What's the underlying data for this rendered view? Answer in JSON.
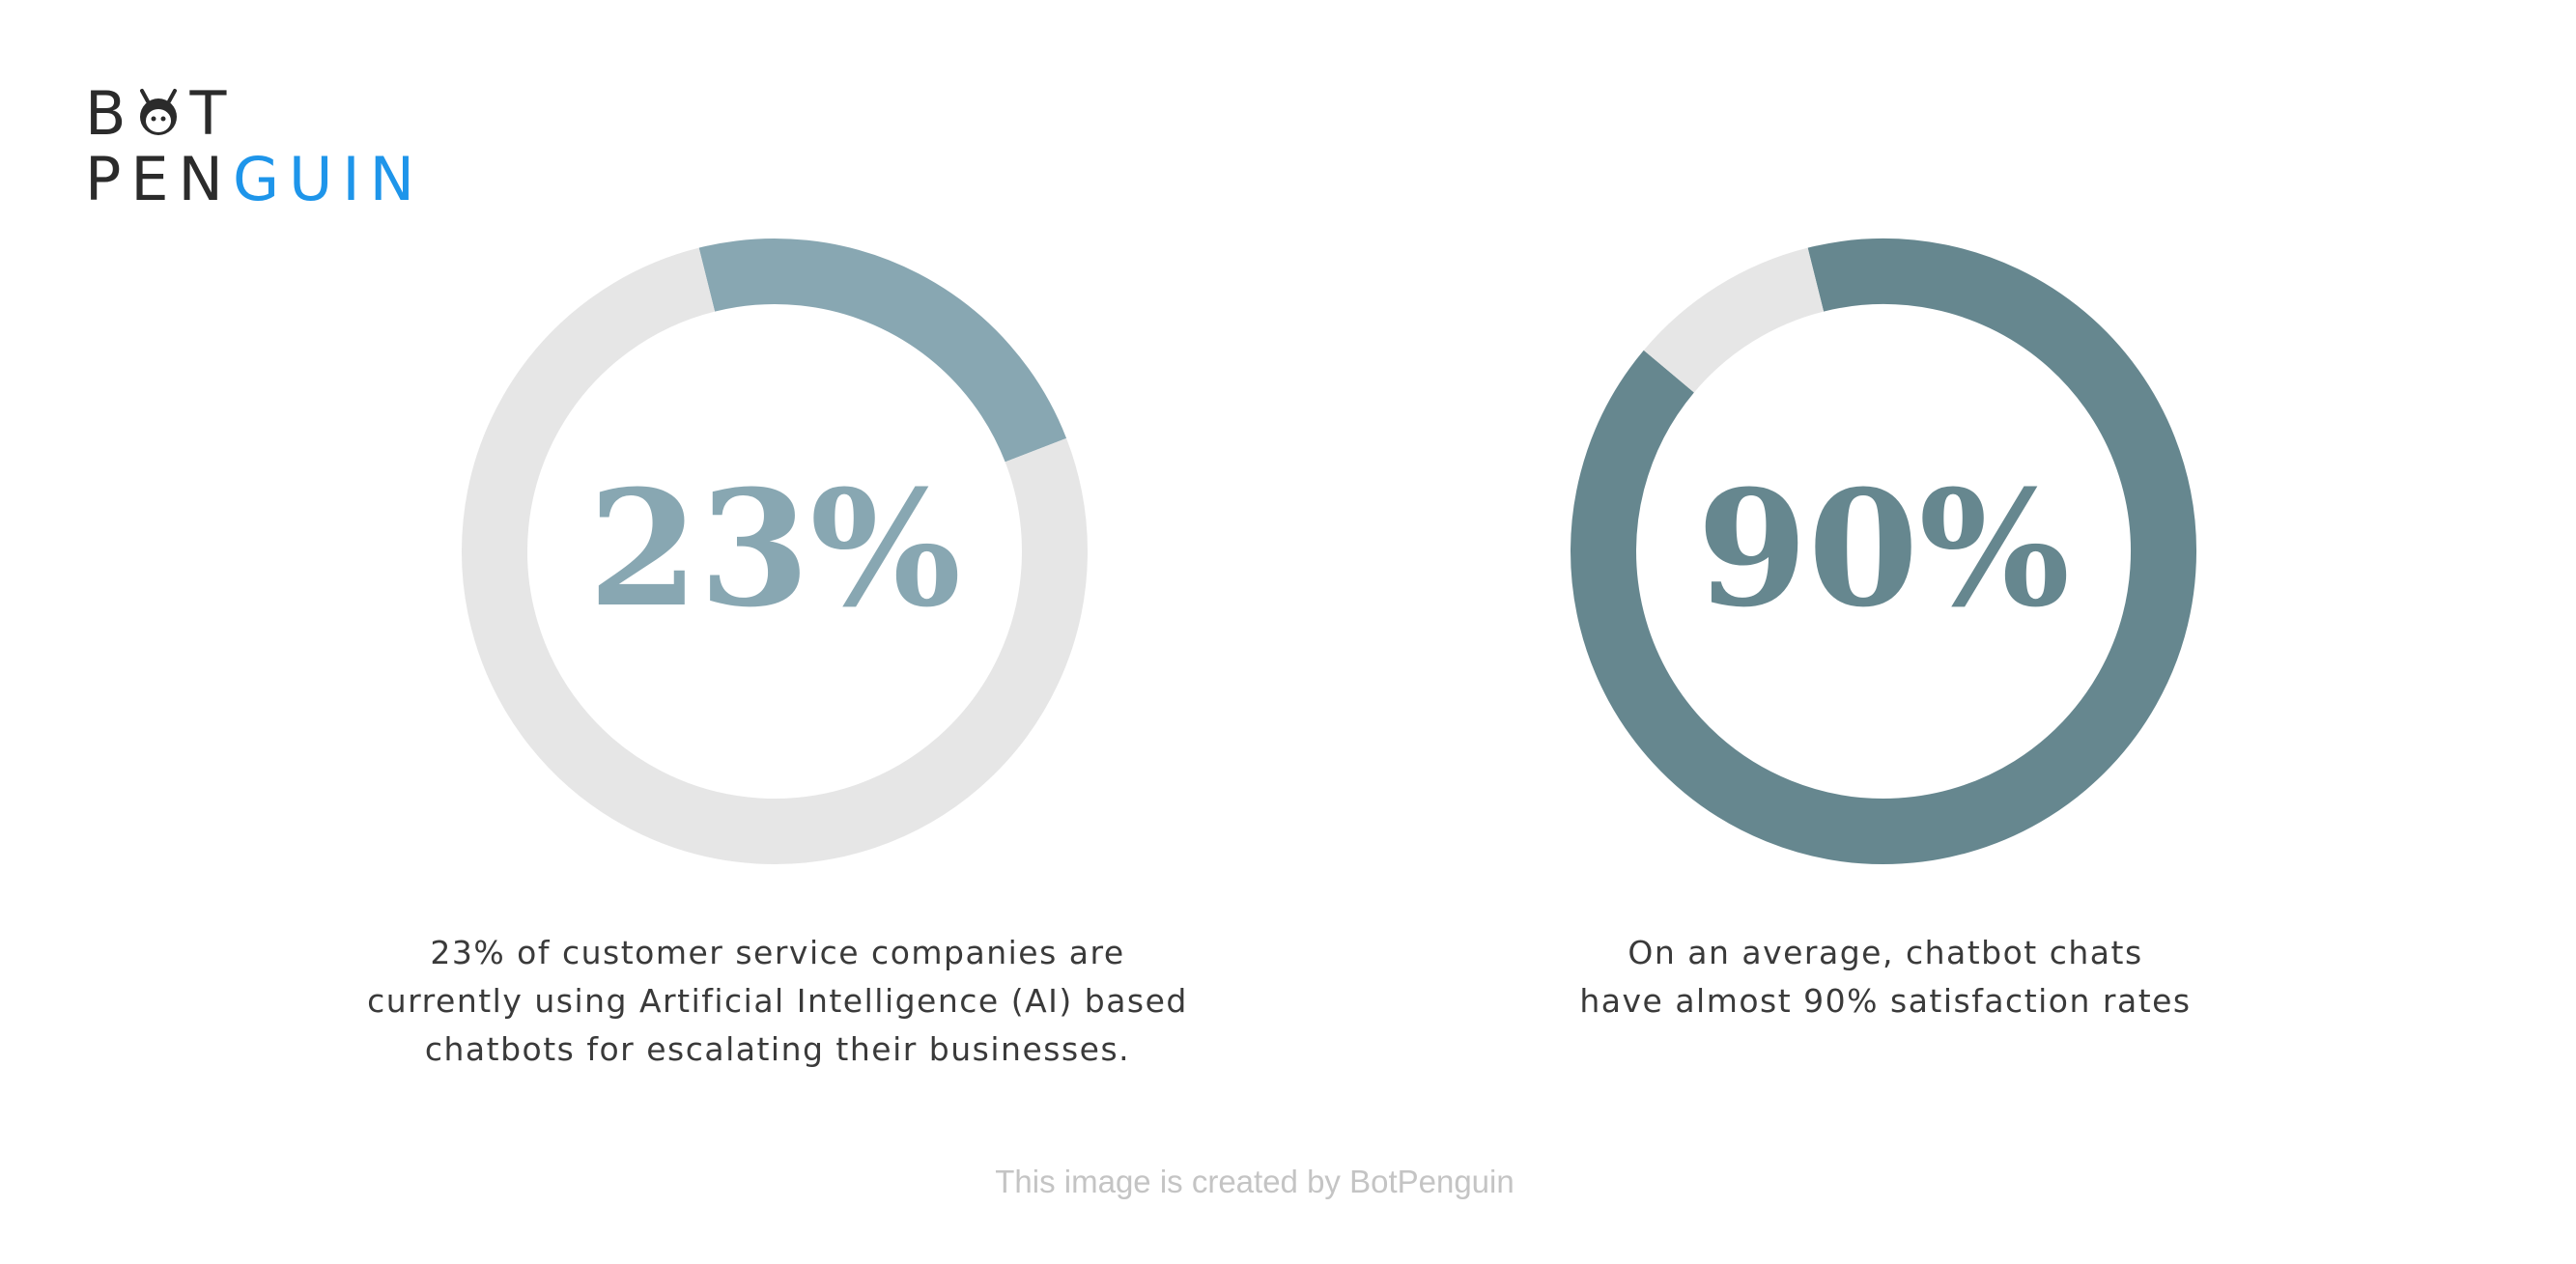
{
  "logo": {
    "line1": "B",
    "line1_rest": "T",
    "line2_dark": "PEN",
    "line2_accent": "GUIN",
    "accent_color": "#1e95ea",
    "owl_icon": "penguin-face-icon"
  },
  "chart_data": [
    {
      "type": "pie",
      "variant": "donut",
      "values": [
        23,
        77
      ],
      "center_label": "23%",
      "colors": [
        "#88a7b2",
        "#e6e6e6"
      ],
      "caption_lines": [
        "23% of customer service companies are",
        "currently using Artificial Intelligence (AI) based",
        "chatbots for escalating their businesses."
      ]
    },
    {
      "type": "pie",
      "variant": "donut",
      "values": [
        90,
        10
      ],
      "center_label": "90%",
      "colors": [
        "#66878f",
        "#e6e6e6"
      ],
      "caption_lines": [
        "On an average, chatbot chats",
        "have almost 90% satisfaction rates"
      ]
    }
  ],
  "footer": {
    "credit": "This image is created by BotPenguin"
  }
}
